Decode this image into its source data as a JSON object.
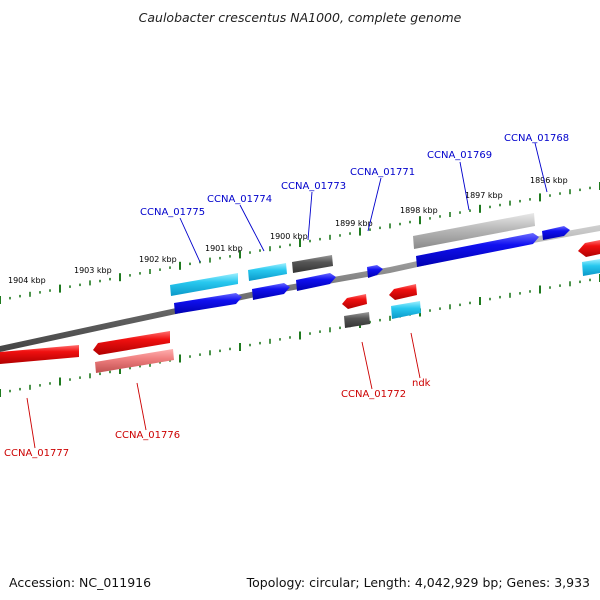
{
  "title": "Caulobacter crescentus NA1000, complete genome",
  "footer": {
    "accession": "Accession: NC_011916",
    "topology": "Topology: circular; Length: 4,042,929 bp; Genes: 3,933"
  },
  "colors": {
    "forward_strand": "#0000e6",
    "reverse_strand": "#e60000",
    "cds_teal": "#20b8e8",
    "cds_gray": "#555555",
    "tick": "#1f7a1f",
    "backbone": "#7a7a7a"
  },
  "scale_labels": [
    "1904 kbp",
    "1903 kbp",
    "1902 kbp",
    "1901 kbp",
    "1900 kbp",
    "1899 kbp",
    "1898 kbp",
    "1897 kbp",
    "1896 kbp"
  ],
  "genes_forward": [
    "CCNA_01775",
    "CCNA_01774",
    "CCNA_01773",
    "CCNA_01771",
    "CCNA_01769",
    "CCNA_01768"
  ],
  "genes_reverse": [
    "CCNA_01777",
    "CCNA_01776",
    "CCNA_01772",
    "ndk"
  ]
}
